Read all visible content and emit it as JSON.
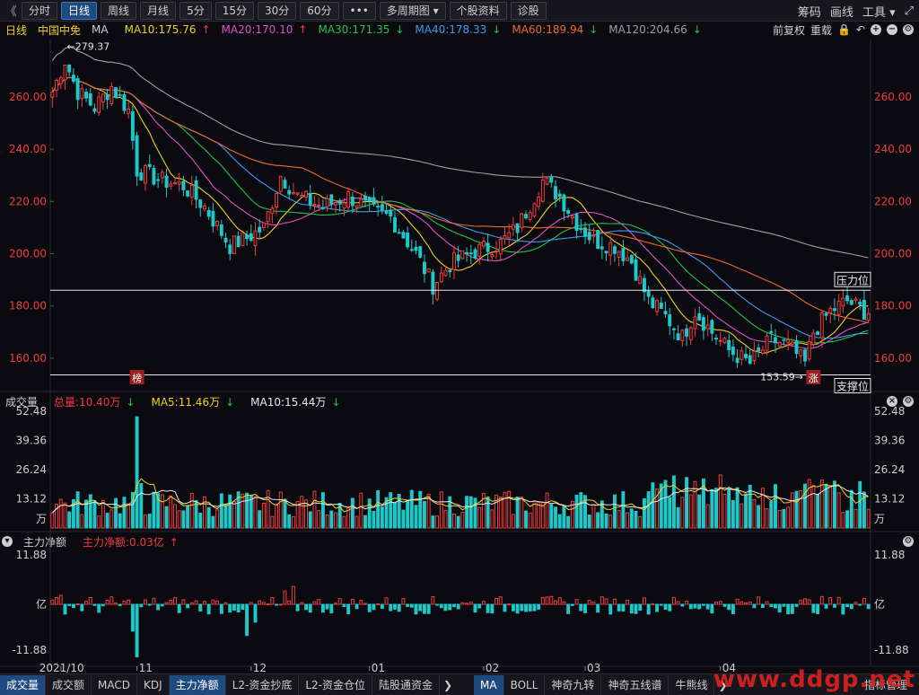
{
  "toolbar": {
    "back": "《",
    "periods": [
      "分时",
      "日线",
      "周线",
      "月线",
      "5分",
      "15分",
      "30分",
      "60分"
    ],
    "active_period": 1,
    "more": "•••",
    "multi_period": "多周期图",
    "stock_info": "个股资料",
    "diagnose": "诊股",
    "right": {
      "chip": "筹码",
      "draw": "画线",
      "tools": "工具"
    }
  },
  "price_legend": {
    "period": "日线",
    "stock": "中国中免",
    "indicator": "MA",
    "ma": [
      {
        "label": "MA10:175.76",
        "arrow": "↑",
        "color": "#f2d21a"
      },
      {
        "label": "MA20:170.10",
        "arrow": "↑",
        "color": "#e050c8"
      },
      {
        "label": "MA30:171.35",
        "arrow": "↓",
        "color": "#22c34a"
      },
      {
        "label": "MA40:178.33",
        "arrow": "↓",
        "color": "#3a9df0"
      },
      {
        "label": "MA60:189.94",
        "arrow": "↓",
        "color": "#f0682a"
      },
      {
        "label": "MA120:204.66",
        "arrow": "↓",
        "color": "#a0a0a0"
      }
    ],
    "fq": "前复权",
    "reset": "重载"
  },
  "volume_legend": {
    "name": "成交量",
    "total": "总量:10.40万",
    "ma5": "MA5:11.46万",
    "ma10": "MA10:15.44万"
  },
  "flow_legend": {
    "name": "主力净额",
    "value": "主力净额:0.03亿"
  },
  "annotations": {
    "high": "←279.37",
    "low": "153.59→",
    "resistance": "压力位",
    "support": "支撑位",
    "limit_down_tag": "榜",
    "limit_up_tag": "涨"
  },
  "price_axis": [
    "260.00",
    "240.00",
    "220.00",
    "200.00",
    "180.00",
    "160.00"
  ],
  "volume_axis": [
    "52.48",
    "39.36",
    "26.24",
    "13.12",
    "万"
  ],
  "flow_axis": [
    "11.88",
    "亿",
    "-11.88"
  ],
  "x_axis": [
    "2021/10",
    "11",
    "12",
    "01",
    "02",
    "03",
    "04"
  ],
  "bottom_tabs": [
    "成交量",
    "成交额",
    "MACD",
    "KDJ",
    "主力净额",
    "L2-资金抄底",
    "L2-资金仓位",
    "陆股通资金"
  ],
  "bottom_tabs2": [
    "MA",
    "BOLL",
    "神奇九转",
    "神奇五线谱",
    "牛熊线"
  ],
  "bottom_right": "指标管理",
  "watermark": "www.ddgp.net",
  "colors": {
    "up": "#f03c3c",
    "down": "#1ec8c8",
    "bg": "#0a0a10",
    "grid": "#1e1e28"
  },
  "chart_data": {
    "type": "candlestick",
    "price_ylim": [
      150,
      282
    ],
    "price_ticks": [
      160,
      180,
      200,
      220,
      240,
      260
    ],
    "resistance_level": 186,
    "support_level": 153.6,
    "close_anchors": [
      [
        0,
        262
      ],
      [
        3,
        274
      ],
      [
        6,
        262
      ],
      [
        10,
        256
      ],
      [
        14,
        264
      ],
      [
        18,
        255
      ],
      [
        20,
        232
      ],
      [
        26,
        228
      ],
      [
        31,
        226
      ],
      [
        36,
        218
      ],
      [
        42,
        203
      ],
      [
        46,
        206
      ],
      [
        50,
        210
      ],
      [
        54,
        230
      ],
      [
        58,
        222
      ],
      [
        64,
        218
      ],
      [
        70,
        222
      ],
      [
        76,
        216
      ],
      [
        80,
        214
      ],
      [
        86,
        200
      ],
      [
        90,
        188
      ],
      [
        94,
        196
      ],
      [
        100,
        201
      ],
      [
        106,
        204
      ],
      [
        110,
        210
      ],
      [
        114,
        222
      ],
      [
        116,
        228
      ],
      [
        120,
        222
      ],
      [
        124,
        212
      ],
      [
        128,
        205
      ],
      [
        133,
        203
      ],
      [
        137,
        197
      ],
      [
        141,
        182
      ],
      [
        145,
        176
      ],
      [
        149,
        168
      ],
      [
        152,
        178
      ],
      [
        156,
        170
      ],
      [
        160,
        163
      ],
      [
        165,
        158
      ],
      [
        170,
        167
      ],
      [
        174,
        165
      ],
      [
        178,
        158
      ],
      [
        180,
        170
      ],
      [
        184,
        178
      ],
      [
        188,
        182
      ],
      [
        192,
        178
      ]
    ],
    "ma_end_values": {
      "MA10": 175.76,
      "MA20": 170.1,
      "MA30": 171.35,
      "MA40": 178.33,
      "MA60": 189.94,
      "MA120": 204.66
    },
    "high": 279.37,
    "low": 153.59,
    "volume_ylim": [
      0,
      52.48
    ],
    "volume_ticks": [
      13.12,
      26.24,
      39.36,
      52.48
    ],
    "volume_unit": "万",
    "volume_total": 10.4,
    "flow_ylim": [
      -11.88,
      11.88
    ],
    "flow_unit": "亿",
    "flow_last": 0.03
  }
}
